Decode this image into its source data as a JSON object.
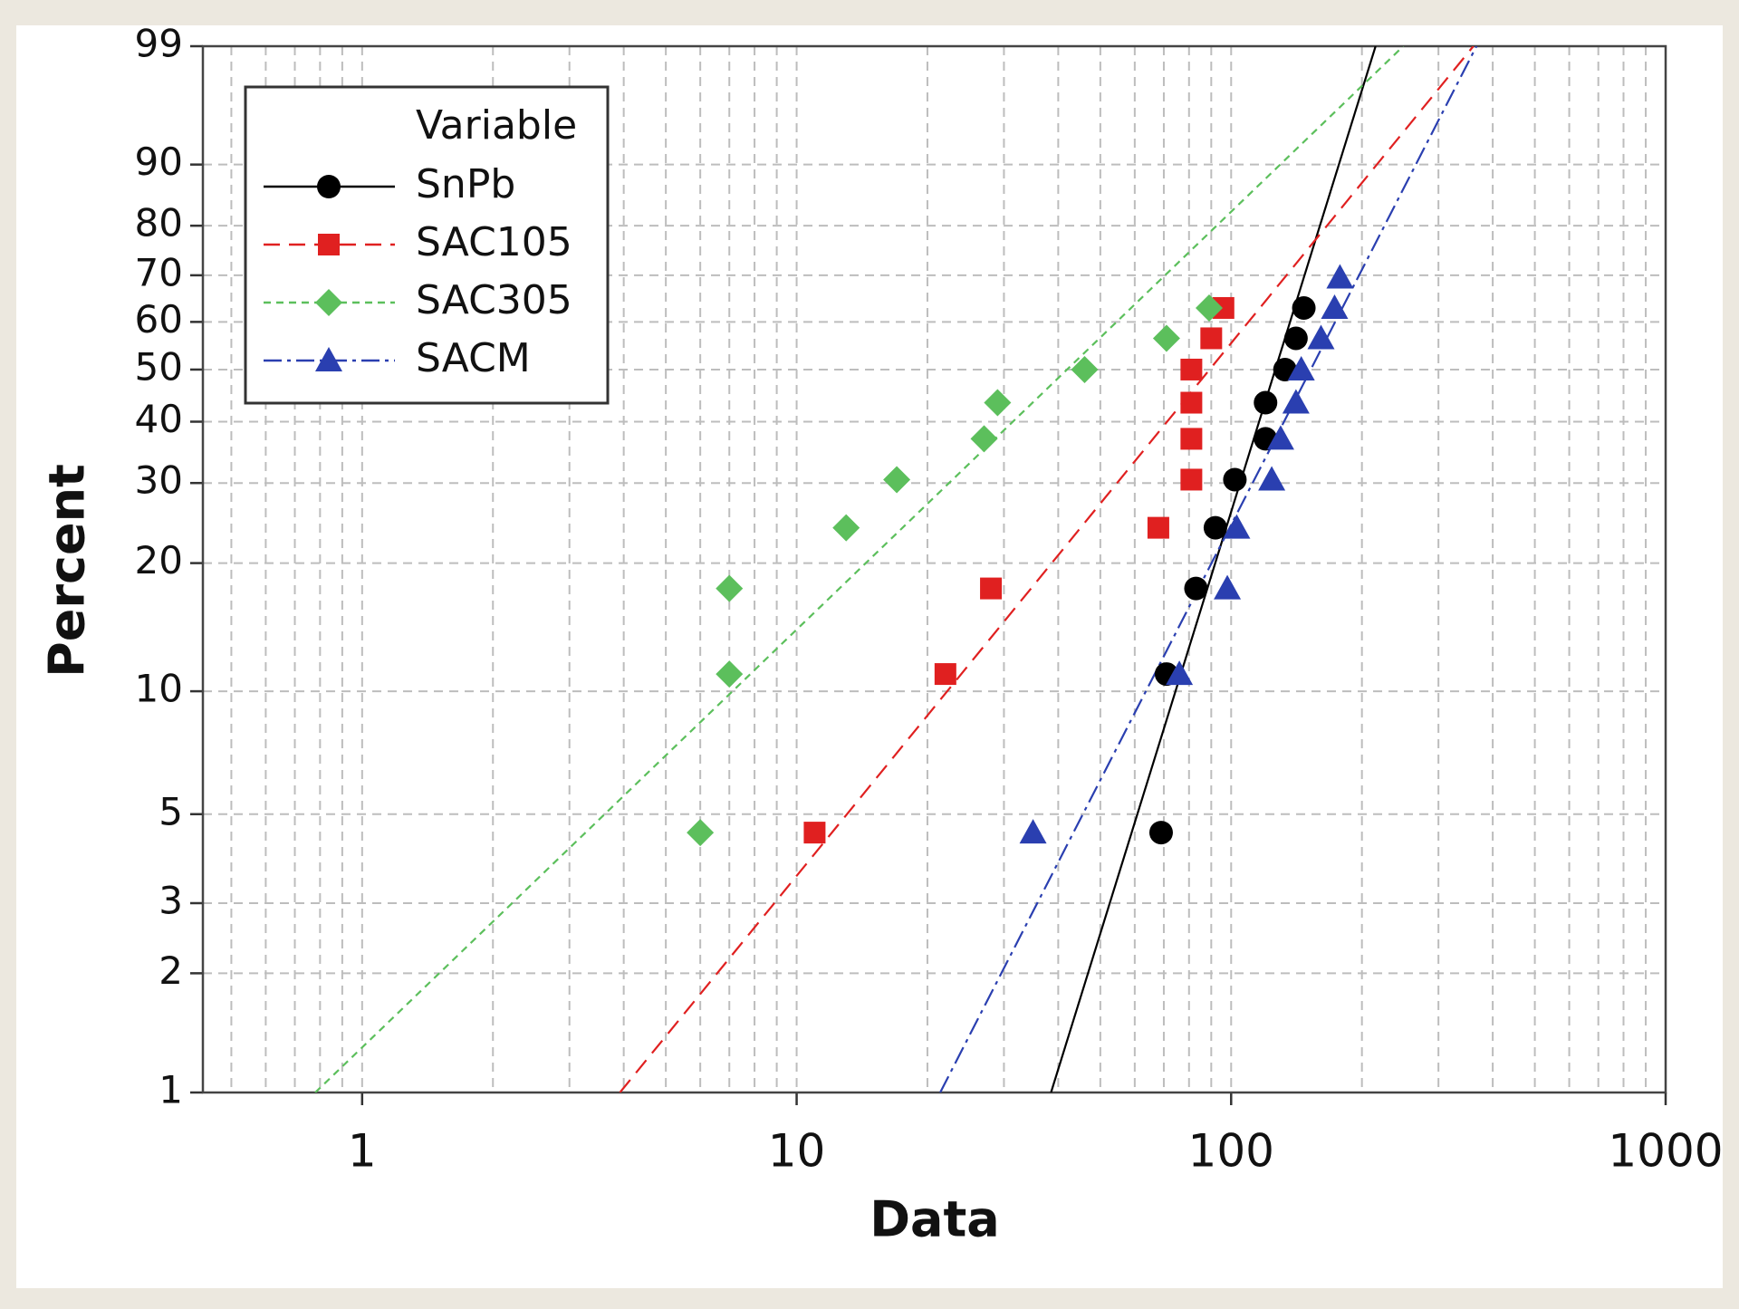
{
  "chart_data": {
    "type": "probability",
    "xscale": "log",
    "yscale": "weibull",
    "xlabel": "Data",
    "ylabel": "Percent",
    "xlim": [
      0.43,
      1000
    ],
    "ylim": [
      1,
      99
    ],
    "xticks": [
      1,
      10,
      100,
      1000
    ],
    "xgrid": [
      0.5,
      0.6,
      0.7,
      0.8,
      0.9,
      1,
      2,
      3,
      4,
      5,
      6,
      7,
      8,
      9,
      10,
      20,
      30,
      40,
      50,
      60,
      70,
      80,
      90,
      100,
      200,
      300,
      400,
      500,
      600,
      700,
      800,
      900
    ],
    "yticks": [
      1,
      2,
      3,
      5,
      10,
      20,
      30,
      40,
      50,
      60,
      70,
      80,
      90,
      99
    ],
    "grid": true,
    "legend_title": "Variable",
    "legend_position": "top-left",
    "series": [
      {
        "name": "SnPb",
        "color": "#000000",
        "marker": "circle",
        "dash": "none",
        "x": [
          69,
          71,
          83,
          92,
          102,
          120,
          120,
          133,
          141,
          147
        ],
        "values": [
          4.5,
          11.0,
          17.5,
          24.0,
          30.5,
          37.0,
          43.5,
          50.0,
          56.5,
          63.0
        ],
        "fit_x": [
          38.5,
          215
        ],
        "fit_y": [
          1,
          99
        ]
      },
      {
        "name": "SAC105",
        "color": "#e02020",
        "marker": "square",
        "dash": "18 10",
        "x": [
          11,
          22,
          28,
          68,
          81,
          81,
          81,
          81,
          90,
          96
        ],
        "values": [
          4.5,
          11.0,
          17.5,
          24.0,
          30.5,
          37.0,
          43.5,
          50.0,
          56.5,
          63.0
        ],
        "fit_x": [
          3.92,
          361
        ],
        "fit_y": [
          1,
          99
        ]
      },
      {
        "name": "SAC305",
        "color": "#5cbf5c",
        "marker": "diamond",
        "dash": "8 6",
        "x": [
          6,
          7,
          7,
          13,
          17,
          27,
          29,
          46,
          71,
          89
        ],
        "values": [
          4.5,
          11.0,
          17.5,
          24.0,
          30.5,
          37.0,
          43.5,
          50.0,
          56.5,
          63.0
        ],
        "fit_x": [
          0.78,
          249
        ],
        "fit_y": [
          1,
          99
        ]
      },
      {
        "name": "SACM",
        "color": "#2a3fb0",
        "marker": "triangle",
        "dash": "20 6 4 6",
        "x": [
          35,
          76,
          98,
          103,
          124,
          130,
          141,
          145,
          161,
          173,
          178
        ],
        "values": [
          4.5,
          11.0,
          17.5,
          24.0,
          30.5,
          37.0,
          43.5,
          50.0,
          56.5,
          63.0,
          69.5
        ],
        "fit_x": [
          21.4,
          367
        ],
        "fit_y": [
          1,
          99
        ]
      }
    ]
  }
}
